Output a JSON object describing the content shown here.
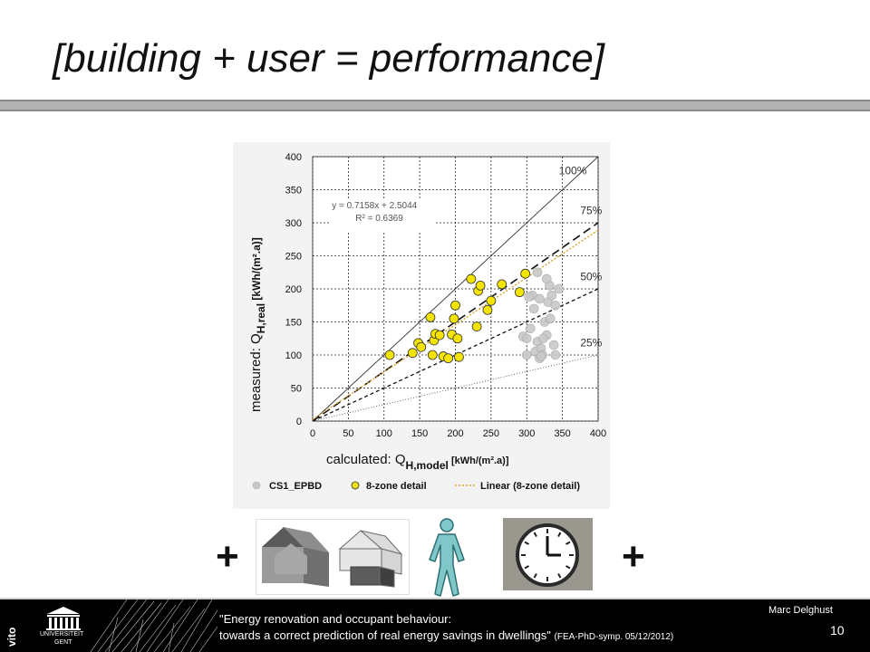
{
  "slide": {
    "title": "[building + user = performance]",
    "plus_left": "+",
    "plus_right": "+"
  },
  "footer": {
    "line1": "\"Energy renovation and occupant behaviour:",
    "line2": "towards a correct prediction of real energy savings in dwellings\"",
    "line2_note": "(FEA-PhD-symp. 05/12/2012)",
    "author": "Marc Delghust",
    "page": "10",
    "logo_left": "vito",
    "logo_ugent_line1": "UNIVERSITEIT",
    "logo_ugent_line2": "GENT"
  },
  "icons": [
    "house-icon",
    "house-wireframe-icon",
    "person-icon",
    "clock-icon"
  ],
  "colors": {
    "yellow_points": "#f5e400",
    "grey_points": "#c8c8c8",
    "trend_line": "#d9a12e",
    "footer": "#000000"
  },
  "chart_data": {
    "type": "scatter",
    "xlim": [
      0,
      400
    ],
    "ylim": [
      0,
      400
    ],
    "xticks": [
      "0",
      "50",
      "100",
      "150",
      "200",
      "250",
      "300",
      "350",
      "400"
    ],
    "yticks": [
      "0",
      "50",
      "100",
      "150",
      "200",
      "250",
      "300",
      "350",
      "400"
    ],
    "xlabel": {
      "main": "calculated: Q",
      "sub": "H,model",
      "unit": "[kWh/(m².a)]"
    },
    "ylabel": {
      "main": "measured: Q",
      "sub": "H,real",
      "unit": "[kWh/(m².a)]"
    },
    "grid": true,
    "legend_position": "bottom",
    "equation": "y = 0.7158x + 2.5044",
    "r_squared": "R² = 0.6369",
    "reference_lines": [
      {
        "label": "100%",
        "slope": 1.0
      },
      {
        "label": "75%",
        "slope": 0.75
      },
      {
        "label": "50%",
        "slope": 0.5
      },
      {
        "label": "25%",
        "slope": 0.25
      }
    ],
    "trend": {
      "slope": 0.7158,
      "intercept": 2.5044
    },
    "series": [
      {
        "name": "CS1_EPBD",
        "points": [
          [
            295,
            128
          ],
          [
            300,
            125
          ],
          [
            305,
            140
          ],
          [
            310,
            170
          ],
          [
            312,
            105
          ],
          [
            315,
            120
          ],
          [
            318,
            95
          ],
          [
            320,
            110
          ],
          [
            322,
            100
          ],
          [
            325,
            150
          ],
          [
            328,
            130
          ],
          [
            330,
            180
          ],
          [
            332,
            205
          ],
          [
            335,
            190
          ],
          [
            338,
            115
          ],
          [
            340,
            175
          ],
          [
            345,
            200
          ],
          [
            300,
            100
          ],
          [
            308,
            190
          ],
          [
            318,
            185
          ],
          [
            323,
            125
          ],
          [
            333,
            155
          ],
          [
            315,
            225
          ],
          [
            328,
            215
          ],
          [
            303,
            188
          ],
          [
            320,
            98
          ],
          [
            340,
            100
          ]
        ]
      },
      {
        "name": "8-zone detail",
        "points": [
          [
            108,
            100
          ],
          [
            140,
            103
          ],
          [
            148,
            118
          ],
          [
            152,
            112
          ],
          [
            165,
            157
          ],
          [
            168,
            100
          ],
          [
            170,
            122
          ],
          [
            172,
            132
          ],
          [
            178,
            130
          ],
          [
            183,
            98
          ],
          [
            190,
            95
          ],
          [
            195,
            131
          ],
          [
            198,
            155
          ],
          [
            200,
            175
          ],
          [
            203,
            125
          ],
          [
            205,
            97
          ],
          [
            222,
            215
          ],
          [
            230,
            143
          ],
          [
            232,
            197
          ],
          [
            235,
            205
          ],
          [
            245,
            168
          ],
          [
            250,
            182
          ],
          [
            265,
            207
          ],
          [
            290,
            195
          ],
          [
            298,
            223
          ]
        ]
      }
    ],
    "legend": [
      "CS1_EPBD",
      "8-zone detail",
      "Linear (8-zone detail)"
    ]
  }
}
